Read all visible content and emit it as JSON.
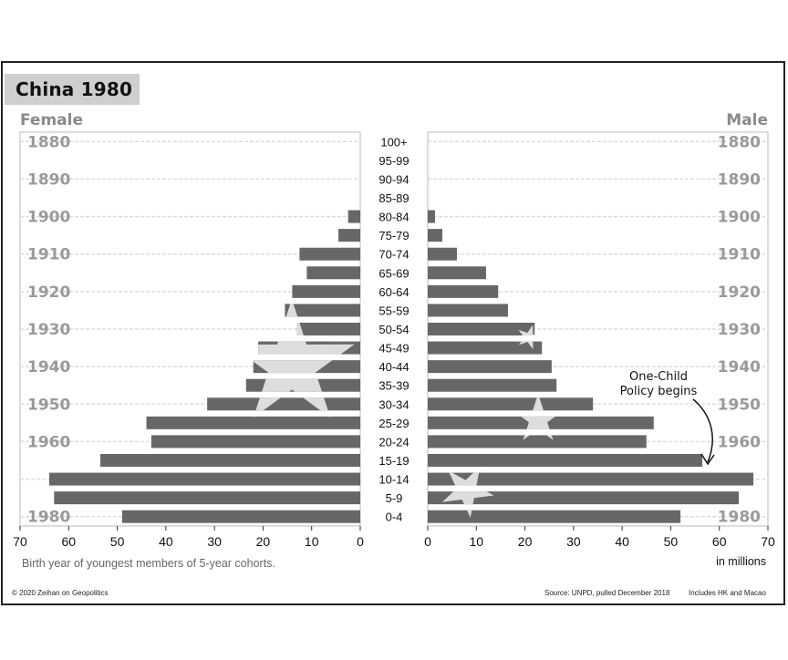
{
  "chart_data": {
    "type": "bar",
    "title": "China 1980",
    "left_label": "Female",
    "right_label": "Male",
    "age_groups": [
      "100+",
      "95-99",
      "90-94",
      "85-89",
      "80-84",
      "75-79",
      "70-74",
      "65-69",
      "60-64",
      "55-59",
      "50-54",
      "45-49",
      "40-44",
      "35-39",
      "30-34",
      "25-29",
      "20-24",
      "15-19",
      "10-14",
      "5-9",
      "0-4"
    ],
    "birth_years": [
      "1880",
      "1890",
      "1900",
      "1910",
      "1920",
      "1930",
      "1940",
      "1950",
      "1960",
      "",
      "1980"
    ],
    "series": [
      {
        "name": "Female",
        "values": [
          0,
          0,
          0,
          0,
          2.5,
          4.5,
          12.5,
          11,
          14,
          15.5,
          13,
          21,
          22,
          23.5,
          31.5,
          44,
          43,
          53.5,
          64,
          63,
          49
        ]
      },
      {
        "name": "Male",
        "values": [
          0,
          0,
          0,
          0,
          1.5,
          3,
          6,
          12,
          14.5,
          16.5,
          22,
          23.5,
          25.5,
          26.5,
          34,
          46.5,
          45,
          56.5,
          67,
          64,
          52
        ]
      }
    ],
    "xlim": [
      0,
      70
    ],
    "x_ticks_female": [
      "70",
      "60",
      "50",
      "40",
      "30",
      "20",
      "10",
      "0"
    ],
    "x_ticks_male": [
      "0",
      "10",
      "20",
      "30",
      "40",
      "50",
      "60",
      "70"
    ],
    "xlabel_left": "Birth year of youngest members of 5-year cohorts.",
    "xlabel_right": "in millions",
    "annotation": {
      "line1": "One-Child",
      "line2": "Policy begins",
      "points_to": "15-19"
    },
    "colors": {
      "bar": "#676767",
      "flag_star": "#dddddd",
      "grid": "#dedede",
      "year_text": "#9a9a9a",
      "title_box": "#cfcfcf"
    }
  },
  "footer": {
    "copyright": "© 2020 Zeihan on Geopolitics",
    "source": "Source: UNPD, pulled December 2018",
    "note": "Includes HK and Macao"
  }
}
